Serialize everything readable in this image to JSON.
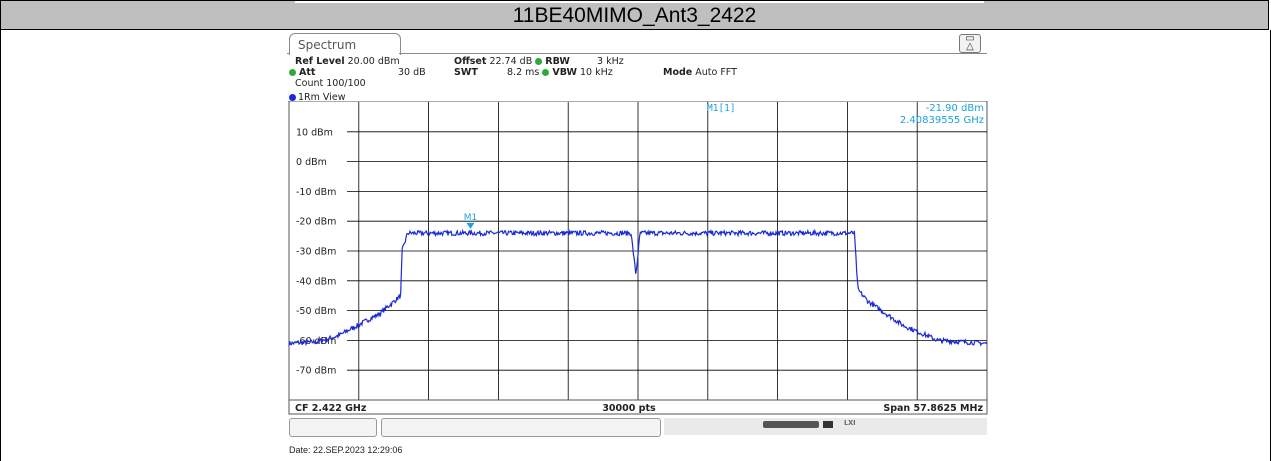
{
  "title": "11BE40MIMO_Ant3_2422",
  "tab_label": "Spectrum",
  "params": {
    "ref_level_label": "Ref Level",
    "ref_level_value": "20.00 dBm",
    "offset_label": "Offset",
    "offset_value": "22.74 dB",
    "rbw_label": "RBW",
    "rbw_value": "3 kHz",
    "att_label": "Att",
    "att_value": "30 dB",
    "swt_label": "SWT",
    "swt_value": "8.2 ms",
    "vbw_label": "VBW",
    "vbw_value": "10 kHz",
    "mode_label": "Mode",
    "mode_value": "Auto FFT",
    "count": "Count 100/100"
  },
  "view_label": "1Rm View",
  "marker": {
    "name": "M1[1]",
    "level": "-21.90 dBm",
    "freq": "2.40839555 GHz",
    "tag": "M1"
  },
  "footer": {
    "cf": "CF 2.422 GHz",
    "pts": "30000 pts",
    "span": "Span 57.8625 MHz"
  },
  "date": "Date: 22.SEP.2023  12:29:06",
  "colors": {
    "trace": "#1a2ad8",
    "marker": "#1aa3d8",
    "grid": "#000000"
  },
  "chart_data": {
    "type": "line",
    "ylim": [
      -80,
      20
    ],
    "y_ticks": [
      "10 dBm",
      "0 dBm",
      "-10 dBm",
      "-20 dBm",
      "-30 dBm",
      "-40 dBm",
      "-50 dBm",
      "-60 dBm",
      "-70 dBm"
    ],
    "y_tick_values": [
      10,
      0,
      -10,
      -20,
      -30,
      -40,
      -50,
      -60,
      -70
    ],
    "x_divisions": 10,
    "series": [
      {
        "x": [
          0,
          0.4,
          0.7,
          0.9,
          1.3,
          1.6,
          1.62,
          1.7,
          2.0,
          3.0,
          4.9,
          4.97,
          5.03,
          5.1,
          6.0,
          7.0,
          8.0,
          8.1,
          8.15,
          8.3,
          8.8,
          9.3,
          10
        ],
        "y": [
          -61,
          -60.5,
          -58.5,
          -56,
          -51,
          -45,
          -30,
          -24,
          -24,
          -24,
          -24,
          -38,
          -24,
          -24,
          -24,
          -24,
          -24,
          -24,
          -43,
          -47,
          -55,
          -60,
          -61
        ]
      }
    ],
    "marker_point": {
      "x": 2.6,
      "y": -21.9
    }
  }
}
